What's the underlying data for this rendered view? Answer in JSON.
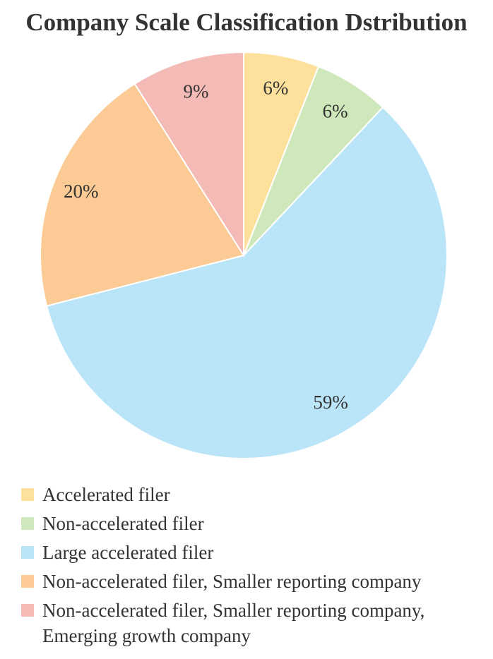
{
  "chart_data": {
    "type": "pie",
    "title": "Company Scale Classification Dstribution",
    "legend_position": "bottom-left",
    "slices": [
      {
        "name": "Accelerated filer",
        "value": 6,
        "label": "6%",
        "color": "#FDE09B"
      },
      {
        "name": "Non-accelerated filer",
        "value": 6,
        "label": "6%",
        "color": "#CFE8BB"
      },
      {
        "name": "Large accelerated filer",
        "value": 59,
        "label": "59%",
        "color": "#BAE5F9"
      },
      {
        "name": "Non-accelerated filer, Smaller reporting company",
        "value": 20,
        "label": "20%",
        "color": "#FCCA94"
      },
      {
        "name": "Non-accelerated filer, Smaller reporting company, Emerging growth company",
        "value": 9,
        "label": "9%",
        "color": "#F4BAB5"
      }
    ]
  }
}
